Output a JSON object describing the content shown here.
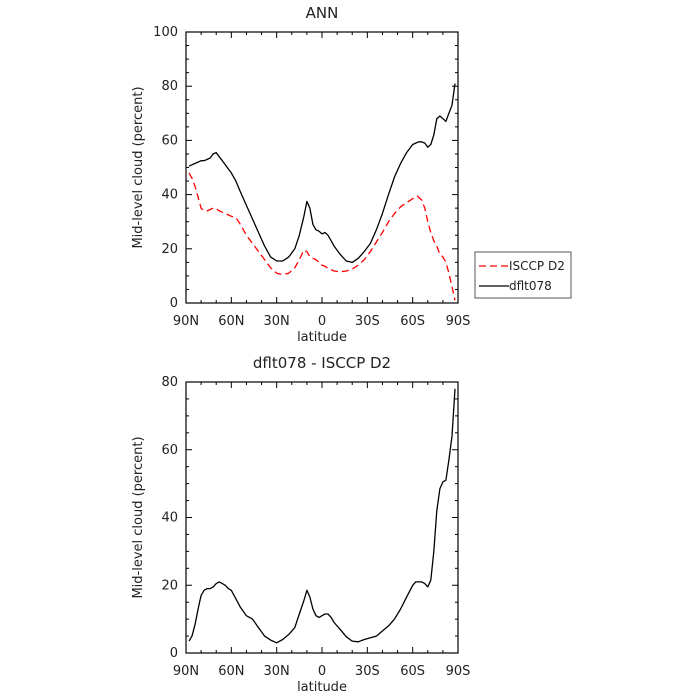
{
  "chart_data": [
    {
      "type": "line",
      "title": "ANN",
      "xlabel": "latitude",
      "ylabel": "Mid-level cloud (percent)",
      "xlim": [
        90,
        -90
      ],
      "ylim": [
        0,
        100
      ],
      "xticks": [
        90,
        60,
        30,
        0,
        -30,
        -60,
        -90
      ],
      "xtick_labels": [
        "90N",
        "60N",
        "30N",
        "0",
        "30S",
        "60S",
        "90S"
      ],
      "yticks": [
        0,
        20,
        40,
        60,
        80,
        100
      ],
      "grid": false,
      "legend": "outside-right",
      "series": [
        {
          "name": "ISCCP D2",
          "color": "#ff0000",
          "dash": "dashed",
          "x": [
            88,
            86,
            84,
            82,
            80,
            78,
            76,
            74,
            72,
            70,
            68,
            66,
            64,
            62,
            60,
            57,
            54,
            50,
            46,
            42,
            38,
            34,
            30,
            26,
            22,
            18,
            15,
            12,
            10,
            8,
            6,
            4,
            2,
            0,
            -2,
            -5,
            -8,
            -12,
            -16,
            -20,
            -24,
            -28,
            -32,
            -36,
            -40,
            -44,
            -48,
            -52,
            -56,
            -60,
            -63,
            -66,
            -68,
            -70,
            -72,
            -74,
            -76,
            -78,
            -80,
            -82,
            -84,
            -86,
            -88
          ],
          "y": [
            48,
            46,
            43,
            39,
            35,
            34,
            34,
            34.5,
            35,
            34.8,
            34,
            33.5,
            33,
            32.5,
            32,
            31.5,
            29,
            25,
            22,
            19,
            16,
            13,
            11,
            10.5,
            11,
            13,
            16,
            19.5,
            19,
            17,
            16.5,
            16,
            15,
            14,
            13.5,
            12.5,
            11.8,
            11.5,
            11.8,
            12.5,
            14,
            16,
            19,
            22.5,
            26,
            30,
            33,
            35.5,
            37,
            38.5,
            39.5,
            38,
            35,
            30,
            26,
            23,
            21,
            18,
            17,
            15,
            11,
            6,
            1
          ]
        },
        {
          "name": "dflt078",
          "color": "#000000",
          "dash": "solid",
          "x": [
            88,
            86,
            84,
            82,
            80,
            78,
            76,
            74,
            72,
            70,
            68,
            66,
            64,
            62,
            60,
            57,
            54,
            50,
            46,
            42,
            38,
            34,
            30,
            26,
            22,
            18,
            15,
            12,
            10,
            8,
            6,
            4,
            2,
            0,
            -2,
            -4,
            -6,
            -8,
            -12,
            -16,
            -20,
            -24,
            -28,
            -32,
            -36,
            -40,
            -44,
            -48,
            -52,
            -56,
            -60,
            -62,
            -64,
            -66,
            -68,
            -70,
            -72,
            -74,
            -76,
            -78,
            -80,
            -82,
            -84,
            -86,
            -88
          ],
          "y": [
            50.5,
            51,
            51.5,
            52,
            52.5,
            52.5,
            53,
            53.5,
            55,
            55.5,
            54,
            52.5,
            51,
            49.5,
            48,
            45,
            41,
            36,
            31,
            26,
            21,
            17,
            15.5,
            15.5,
            17,
            20,
            25,
            32,
            37.5,
            35,
            29,
            27,
            26.5,
            25.5,
            26,
            25,
            23,
            21,
            18,
            15.5,
            15,
            16.5,
            19,
            22,
            27,
            33,
            40,
            46.5,
            51.5,
            55.5,
            58.5,
            59,
            59.5,
            59.5,
            59,
            57.5,
            58.5,
            62,
            68,
            69,
            68,
            67,
            70,
            73,
            81
          ]
        }
      ]
    },
    {
      "type": "line",
      "title": "dflt078 - ISCCP D2",
      "xlabel": "latitude",
      "ylabel": "Mid-level cloud (percent)",
      "xlim": [
        90,
        -90
      ],
      "ylim": [
        0,
        80
      ],
      "xticks": [
        90,
        60,
        30,
        0,
        -30,
        -60,
        -90
      ],
      "xtick_labels": [
        "90N",
        "60N",
        "30N",
        "0",
        "30S",
        "60S",
        "90S"
      ],
      "yticks": [
        0,
        20,
        40,
        60,
        80
      ],
      "grid": false,
      "series": [
        {
          "color": "#000000",
          "dash": "solid",
          "x": [
            88,
            86,
            84,
            82,
            80,
            78,
            76,
            74,
            72,
            70,
            68,
            66,
            64,
            62,
            60,
            57,
            54,
            50,
            46,
            42,
            38,
            34,
            30,
            26,
            22,
            18,
            15,
            12,
            10,
            8,
            6,
            4,
            2,
            0,
            -2,
            -4,
            -6,
            -8,
            -12,
            -16,
            -20,
            -24,
            -28,
            -32,
            -36,
            -40,
            -44,
            -48,
            -52,
            -56,
            -60,
            -62,
            -64,
            -66,
            -68,
            -70,
            -72,
            -74,
            -76,
            -78,
            -80,
            -82,
            -84,
            -86,
            -88
          ],
          "y": [
            3.5,
            5,
            8.5,
            13,
            17,
            18.5,
            19,
            19,
            19.5,
            20.5,
            21,
            20.5,
            20,
            19,
            18.5,
            16,
            13.5,
            11,
            10,
            7.5,
            5,
            3.8,
            3,
            4,
            5.5,
            7.5,
            11.5,
            15.5,
            18.5,
            16.5,
            13,
            11,
            10.5,
            11,
            11.5,
            11.5,
            10.5,
            9,
            7,
            4.8,
            3.5,
            3.3,
            4,
            4.5,
            5,
            6.5,
            8,
            10,
            13,
            16.5,
            20,
            21,
            21,
            21,
            20.5,
            19.5,
            21.5,
            30,
            42,
            48.5,
            50.5,
            51,
            57,
            64,
            78
          ]
        }
      ]
    }
  ]
}
